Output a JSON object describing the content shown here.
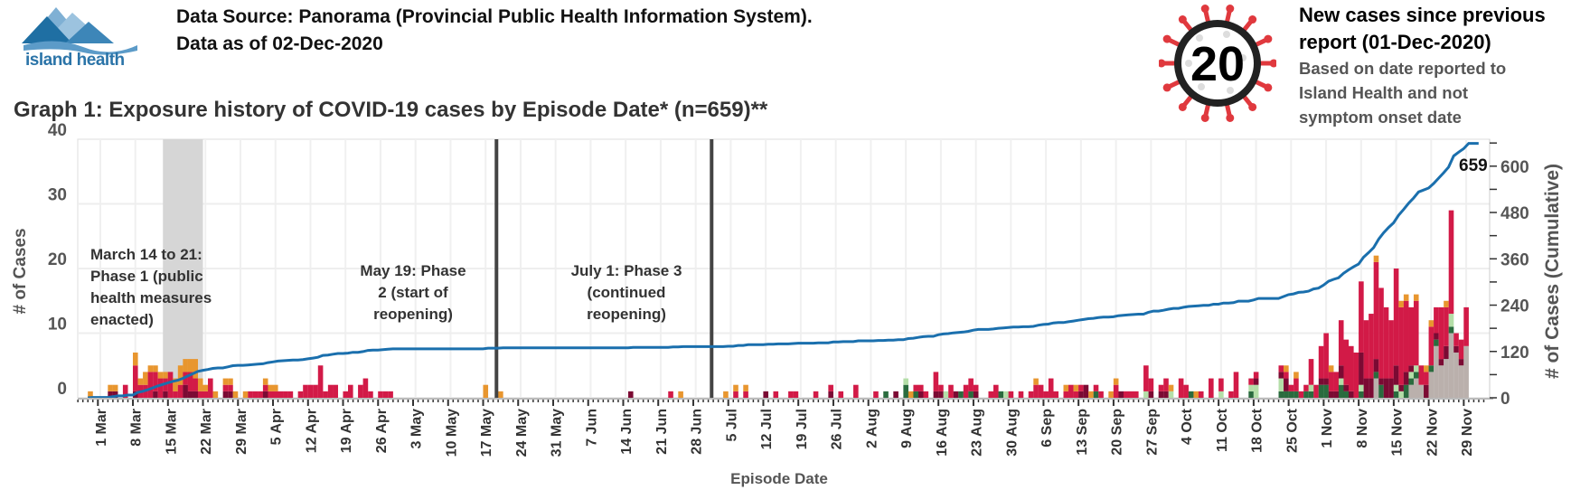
{
  "header": {
    "logo_text": "island health",
    "source_line": "Data Source: Panorama (Provincial Public Health Information System).",
    "date_line": "Data as of 02-Dec-2020",
    "graph_title": "Graph 1: Exposure history of COVID-19 cases by Episode Date* (n=659)**"
  },
  "new_cases": {
    "count": "20",
    "title_line1": "New cases since previous",
    "title_line2": "report (01-Dec-2020)",
    "note_line1": "Based on date reported to",
    "note_line2": "Island Health and not",
    "note_line3": "symptom onset date"
  },
  "chart_data": {
    "type": "bar",
    "title": "Exposure history of COVID-19 cases by Episode Date",
    "xlabel": "Episode Date",
    "ylabel": "# of Cases",
    "y2label": "# of Cases (Cumulative)",
    "ylim": [
      0,
      41
    ],
    "y2lim": [
      0,
      680
    ],
    "yticks": [
      "0",
      "10",
      "20",
      "30",
      "40"
    ],
    "y2ticks": [
      "0",
      "120",
      "240",
      "360",
      "480",
      "600"
    ],
    "x_start": "2020-03-01",
    "xticks": [
      "1 Mar",
      "8 Mar",
      "15 Mar",
      "22 Mar",
      "29 Mar",
      "5 Apr",
      "12 Apr",
      "19 Apr",
      "26 Apr",
      "3 May",
      "10 May",
      "17 May",
      "24 May",
      "31 May",
      "7 Jun",
      "14 Jun",
      "21 Jun",
      "28 Jun",
      "5 Jul",
      "12 Jul",
      "19 Jul",
      "26 Jul",
      "2 Aug",
      "9 Aug",
      "16 Aug",
      "23 Aug",
      "30 Aug",
      "6 Sep",
      "13 Sep",
      "20 Sep",
      "27 Sep",
      "4 Oct",
      "11 Oct",
      "18 Oct",
      "25 Oct",
      "1 Nov",
      "8 Nov",
      "15 Nov",
      "22 Nov",
      "29 Nov"
    ],
    "cumulative_final": "659",
    "series_colors": [
      "#BAB0AC",
      "#2A6B3E",
      "#B4DEA8",
      "#7B0A33",
      "#D21A47",
      "#E8962F"
    ],
    "line_color": "#1A6FAD",
    "stack_order": "bottom-to-top",
    "bars_fields": [
      "date",
      "gray",
      "darkgreen",
      "lightgreen",
      "darkred",
      "red",
      "orange"
    ],
    "bars": [
      [
        "2020-02-28",
        0,
        0,
        0,
        0,
        0,
        1
      ],
      [
        "2020-03-03",
        0,
        0,
        0,
        1,
        0,
        1
      ],
      [
        "2020-03-04",
        0,
        0,
        0,
        1,
        0,
        1
      ],
      [
        "2020-03-06",
        0,
        0,
        0,
        0,
        2,
        0
      ],
      [
        "2020-03-08",
        0,
        0,
        0,
        1,
        4,
        2
      ],
      [
        "2020-03-09",
        0,
        0,
        0,
        0,
        2,
        1
      ],
      [
        "2020-03-10",
        0,
        0,
        0,
        0,
        2,
        2
      ],
      [
        "2020-03-11",
        0,
        0,
        0,
        0,
        4,
        1
      ],
      [
        "2020-03-12",
        0,
        0,
        0,
        1,
        3,
        1
      ],
      [
        "2020-03-13",
        0,
        0,
        0,
        0,
        3,
        1
      ],
      [
        "2020-03-14",
        0,
        0,
        0,
        1,
        2,
        1
      ],
      [
        "2020-03-15",
        0,
        0,
        0,
        0,
        4,
        0
      ],
      [
        "2020-03-16",
        0,
        0,
        0,
        0,
        1,
        2
      ],
      [
        "2020-03-17",
        0,
        0,
        0,
        0,
        2,
        3
      ],
      [
        "2020-03-18",
        0,
        0,
        0,
        2,
        2,
        2
      ],
      [
        "2020-03-19",
        0,
        0,
        0,
        1,
        3,
        2
      ],
      [
        "2020-03-20",
        0,
        0,
        0,
        1,
        2,
        3
      ],
      [
        "2020-03-21",
        0,
        0,
        0,
        0,
        1,
        2
      ],
      [
        "2020-03-22",
        0,
        0,
        0,
        0,
        1,
        1
      ],
      [
        "2020-03-23",
        0,
        0,
        0,
        0,
        3,
        0
      ],
      [
        "2020-03-24",
        0,
        0,
        0,
        0,
        0,
        1
      ],
      [
        "2020-03-26",
        0,
        0,
        0,
        1,
        1,
        1
      ],
      [
        "2020-03-27",
        0,
        0,
        0,
        1,
        1,
        1
      ],
      [
        "2020-03-28",
        0,
        0,
        0,
        0,
        0,
        1
      ],
      [
        "2020-03-30",
        0,
        0,
        0,
        0,
        0,
        1
      ],
      [
        "2020-03-31",
        0,
        0,
        0,
        0,
        1,
        0
      ],
      [
        "2020-04-01",
        0,
        0,
        0,
        0,
        1,
        0
      ],
      [
        "2020-04-02",
        0,
        0,
        0,
        0,
        1,
        0
      ],
      [
        "2020-04-03",
        0,
        0,
        0,
        1,
        1,
        1
      ],
      [
        "2020-04-04",
        0,
        0,
        0,
        0,
        1,
        1
      ],
      [
        "2020-04-05",
        0,
        0,
        0,
        0,
        1,
        1
      ],
      [
        "2020-04-06",
        0,
        0,
        0,
        0,
        1,
        0
      ],
      [
        "2020-04-07",
        0,
        0,
        0,
        0,
        1,
        0
      ],
      [
        "2020-04-08",
        0,
        0,
        0,
        0,
        1,
        0
      ],
      [
        "2020-04-10",
        0,
        0,
        0,
        0,
        1,
        0
      ],
      [
        "2020-04-11",
        0,
        0,
        0,
        0,
        2,
        0
      ],
      [
        "2020-04-12",
        0,
        0,
        0,
        0,
        2,
        0
      ],
      [
        "2020-04-13",
        0,
        0,
        0,
        0,
        2,
        0
      ],
      [
        "2020-04-14",
        0,
        0,
        0,
        0,
        5,
        0
      ],
      [
        "2020-04-15",
        0,
        0,
        0,
        0,
        1,
        0
      ],
      [
        "2020-04-16",
        0,
        0,
        0,
        0,
        2,
        0
      ],
      [
        "2020-04-17",
        0,
        0,
        0,
        0,
        2,
        0
      ],
      [
        "2020-04-19",
        0,
        0,
        0,
        0,
        1,
        0
      ],
      [
        "2020-04-20",
        0,
        0,
        0,
        0,
        2,
        0
      ],
      [
        "2020-04-22",
        0,
        0,
        0,
        0,
        2,
        0
      ],
      [
        "2020-04-23",
        0,
        0,
        0,
        0,
        3,
        0
      ],
      [
        "2020-04-24",
        0,
        0,
        0,
        0,
        1,
        0
      ],
      [
        "2020-04-26",
        0,
        0,
        0,
        0,
        1,
        0
      ],
      [
        "2020-04-27",
        0,
        0,
        0,
        0,
        1,
        0
      ],
      [
        "2020-04-28",
        0,
        0,
        0,
        0,
        1,
        0
      ],
      [
        "2020-05-17",
        0,
        0,
        0,
        0,
        0,
        2
      ],
      [
        "2020-05-20",
        0,
        0,
        0,
        0,
        0,
        1
      ],
      [
        "2020-06-15",
        0,
        0,
        0,
        1,
        0,
        0
      ],
      [
        "2020-06-23",
        0,
        0,
        0,
        0,
        1,
        0
      ],
      [
        "2020-06-25",
        0,
        0,
        0,
        0,
        0,
        1
      ],
      [
        "2020-07-04",
        0,
        0,
        0,
        0,
        0,
        1
      ],
      [
        "2020-07-06",
        0,
        0,
        0,
        0,
        1,
        1
      ],
      [
        "2020-07-08",
        0,
        0,
        0,
        0,
        1,
        1
      ],
      [
        "2020-07-12",
        0,
        0,
        0,
        1,
        0,
        0
      ],
      [
        "2020-07-14",
        0,
        0,
        0,
        0,
        1,
        0
      ],
      [
        "2020-07-17",
        0,
        0,
        0,
        0,
        1,
        0
      ],
      [
        "2020-07-18",
        0,
        0,
        0,
        0,
        1,
        0
      ],
      [
        "2020-07-22",
        0,
        0,
        0,
        0,
        1,
        0
      ],
      [
        "2020-07-25",
        0,
        0,
        0,
        1,
        1,
        0
      ],
      [
        "2020-07-27",
        0,
        0,
        0,
        0,
        1,
        0
      ],
      [
        "2020-07-30",
        0,
        0,
        0,
        0,
        2,
        0
      ],
      [
        "2020-08-03",
        0,
        0,
        0,
        0,
        1,
        0
      ],
      [
        "2020-08-05",
        0,
        1,
        0,
        0,
        0,
        0
      ],
      [
        "2020-08-07",
        0,
        0,
        0,
        1,
        0,
        0
      ],
      [
        "2020-08-09",
        0,
        2,
        1,
        0,
        0,
        0
      ],
      [
        "2020-08-10",
        0,
        0,
        0,
        0,
        0,
        1
      ],
      [
        "2020-08-11",
        0,
        1,
        0,
        0,
        1,
        0
      ],
      [
        "2020-08-12",
        0,
        0,
        0,
        1,
        1,
        0
      ],
      [
        "2020-08-13",
        0,
        0,
        0,
        0,
        1,
        0
      ],
      [
        "2020-08-15",
        0,
        0,
        0,
        1,
        3,
        0
      ],
      [
        "2020-08-16",
        0,
        0,
        0,
        1,
        1,
        0
      ],
      [
        "2020-08-17",
        0,
        0,
        1,
        0,
        0,
        0
      ],
      [
        "2020-08-18",
        0,
        0,
        0,
        0,
        2,
        0
      ],
      [
        "2020-08-19",
        0,
        0,
        0,
        1,
        0,
        0
      ],
      [
        "2020-08-20",
        0,
        1,
        0,
        0,
        0,
        0
      ],
      [
        "2020-08-21",
        0,
        0,
        0,
        0,
        2,
        0
      ],
      [
        "2020-08-22",
        0,
        1,
        0,
        0,
        2,
        0
      ],
      [
        "2020-08-23",
        0,
        0,
        0,
        1,
        1,
        0
      ],
      [
        "2020-08-26",
        0,
        0,
        0,
        0,
        1,
        0
      ],
      [
        "2020-08-27",
        0,
        0,
        0,
        0,
        2,
        0
      ],
      [
        "2020-08-28",
        0,
        1,
        0,
        0,
        0,
        0
      ],
      [
        "2020-08-29",
        0,
        0,
        1,
        0,
        0,
        0
      ],
      [
        "2020-08-30",
        0,
        0,
        0,
        0,
        1,
        0
      ],
      [
        "2020-09-01",
        0,
        0,
        0,
        0,
        1,
        0
      ],
      [
        "2020-09-03",
        0,
        0,
        0,
        0,
        1,
        0
      ],
      [
        "2020-09-04",
        0,
        0,
        0,
        0,
        2,
        1
      ],
      [
        "2020-09-05",
        0,
        0,
        0,
        0,
        2,
        0
      ],
      [
        "2020-09-06",
        0,
        0,
        0,
        0,
        1,
        0
      ],
      [
        "2020-09-07",
        0,
        0,
        0,
        0,
        3,
        0
      ],
      [
        "2020-09-08",
        0,
        0,
        0,
        0,
        1,
        0
      ],
      [
        "2020-09-10",
        0,
        0,
        0,
        0,
        1,
        1
      ],
      [
        "2020-09-11",
        0,
        0,
        0,
        0,
        2,
        0
      ],
      [
        "2020-09-12",
        0,
        0,
        0,
        0,
        1,
        1
      ],
      [
        "2020-09-13",
        0,
        0,
        0,
        1,
        1,
        0
      ],
      [
        "2020-09-14",
        0,
        0,
        0,
        2,
        0,
        0
      ],
      [
        "2020-09-15",
        0,
        0,
        0,
        0,
        0,
        1
      ],
      [
        "2020-09-16",
        0,
        1,
        0,
        0,
        1,
        0
      ],
      [
        "2020-09-17",
        0,
        0,
        0,
        0,
        1,
        0
      ],
      [
        "2020-09-19",
        0,
        0,
        0,
        0,
        0,
        1
      ],
      [
        "2020-09-20",
        0,
        0,
        0,
        0,
        2,
        1
      ],
      [
        "2020-09-21",
        0,
        0,
        0,
        1,
        0,
        0
      ],
      [
        "2020-09-22",
        0,
        0,
        0,
        0,
        1,
        0
      ],
      [
        "2020-09-23",
        0,
        0,
        0,
        0,
        1,
        0
      ],
      [
        "2020-09-24",
        0,
        0,
        0,
        0,
        1,
        0
      ],
      [
        "2020-09-26",
        0,
        0,
        1,
        0,
        4,
        0
      ],
      [
        "2020-09-27",
        0,
        0,
        0,
        1,
        2,
        0
      ],
      [
        "2020-09-29",
        0,
        0,
        0,
        1,
        1,
        0
      ],
      [
        "2020-09-30",
        0,
        0,
        0,
        1,
        2,
        0
      ],
      [
        "2020-10-01",
        0,
        0,
        1,
        0,
        0,
        1
      ],
      [
        "2020-10-03",
        0,
        0,
        0,
        0,
        3,
        0
      ],
      [
        "2020-10-04",
        0,
        0,
        0,
        0,
        2,
        0
      ],
      [
        "2020-10-05",
        0,
        1,
        0,
        0,
        0,
        0
      ],
      [
        "2020-10-06",
        0,
        0,
        0,
        0,
        0,
        1
      ],
      [
        "2020-10-07",
        0,
        0,
        0,
        0,
        1,
        0
      ],
      [
        "2020-10-09",
        0,
        0,
        0,
        0,
        3,
        0
      ],
      [
        "2020-10-11",
        0,
        0,
        1,
        0,
        2,
        0
      ],
      [
        "2020-10-13",
        0,
        0,
        0,
        0,
        1,
        0
      ],
      [
        "2020-10-14",
        0,
        0,
        0,
        0,
        4,
        0
      ],
      [
        "2020-10-17",
        0,
        1,
        1,
        0,
        1,
        0
      ],
      [
        "2020-10-18",
        0,
        0,
        2,
        1,
        1,
        0
      ],
      [
        "2020-10-23",
        0,
        1,
        2,
        1,
        1,
        0
      ],
      [
        "2020-10-24",
        0,
        1,
        0,
        2,
        1,
        1
      ],
      [
        "2020-10-25",
        0,
        1,
        0,
        0,
        1,
        0
      ],
      [
        "2020-10-26",
        0,
        1,
        0,
        0,
        2,
        1
      ],
      [
        "2020-10-27",
        0,
        0,
        0,
        0,
        1,
        0
      ],
      [
        "2020-10-28",
        0,
        1,
        0,
        0,
        1,
        0
      ],
      [
        "2020-10-29",
        0,
        1,
        1,
        0,
        4,
        0
      ],
      [
        "2020-10-30",
        0,
        0,
        0,
        0,
        2,
        0
      ],
      [
        "2020-10-31",
        0,
        2,
        0,
        1,
        5,
        0
      ],
      [
        "2020-11-01",
        0,
        2,
        0,
        1,
        7,
        0
      ],
      [
        "2020-11-02",
        0,
        0,
        0,
        1,
        3,
        1
      ],
      [
        "2020-11-03",
        0,
        0,
        0,
        1,
        3,
        0
      ],
      [
        "2020-11-04",
        0,
        2,
        1,
        2,
        7,
        0
      ],
      [
        "2020-11-05",
        0,
        1,
        0,
        1,
        7,
        0
      ],
      [
        "2020-11-06",
        0,
        0,
        0,
        1,
        7,
        0
      ],
      [
        "2020-11-07",
        0,
        0,
        0,
        0,
        7,
        0
      ],
      [
        "2020-11-08",
        0,
        1,
        1,
        5,
        11,
        0
      ],
      [
        "2020-11-09",
        0,
        0,
        0,
        3,
        9,
        0
      ],
      [
        "2020-11-10",
        0,
        0,
        0,
        3,
        10,
        0
      ],
      [
        "2020-11-11",
        3,
        1,
        0,
        2,
        15,
        1
      ],
      [
        "2020-11-12",
        0,
        2,
        0,
        1,
        14,
        0
      ],
      [
        "2020-11-13",
        0,
        0,
        0,
        3,
        11,
        0
      ],
      [
        "2020-11-14",
        0,
        0,
        0,
        3,
        9,
        0
      ],
      [
        "2020-11-15",
        0,
        1,
        1,
        3,
        15,
        0
      ],
      [
        "2020-11-16",
        0,
        0,
        1,
        1,
        12,
        1
      ],
      [
        "2020-11-17",
        0,
        2,
        0,
        2,
        11,
        1
      ],
      [
        "2020-11-18",
        2,
        1,
        1,
        1,
        9,
        0
      ],
      [
        "2020-11-19",
        3,
        1,
        1,
        0,
        10,
        1
      ],
      [
        "2020-11-20",
        2,
        0,
        0,
        0,
        3,
        0
      ],
      [
        "2020-11-21",
        0,
        0,
        0,
        2,
        2,
        1
      ],
      [
        "2020-11-22",
        4,
        1,
        0,
        0,
        6,
        1
      ],
      [
        "2020-11-23",
        8,
        1,
        0,
        1,
        4,
        0
      ],
      [
        "2020-11-24",
        5,
        0,
        0,
        1,
        8,
        0
      ],
      [
        "2020-11-25",
        6,
        0,
        0,
        2,
        6,
        1
      ],
      [
        "2020-11-26",
        10,
        1,
        2,
        0,
        16,
        0
      ],
      [
        "2020-11-27",
        7,
        0,
        0,
        1,
        2,
        0
      ],
      [
        "2020-11-28",
        5,
        0,
        0,
        1,
        3,
        0
      ],
      [
        "2020-11-29",
        8,
        0,
        0,
        0,
        6,
        0
      ]
    ],
    "annotations": [
      {
        "lines": [
          "March 14 to 21:",
          "Phase 1 (public",
          "health measures",
          "enacted)"
        ],
        "date_from": "2020-03-14",
        "date_to": "2020-03-21"
      },
      {
        "lines": [
          "May 19: Phase",
          "2 (start of",
          "reopening)"
        ],
        "date": "2020-05-19"
      },
      {
        "lines": [
          "July 1: Phase 3",
          "(continued",
          "reopening)"
        ],
        "date": "2020-07-01"
      }
    ]
  }
}
